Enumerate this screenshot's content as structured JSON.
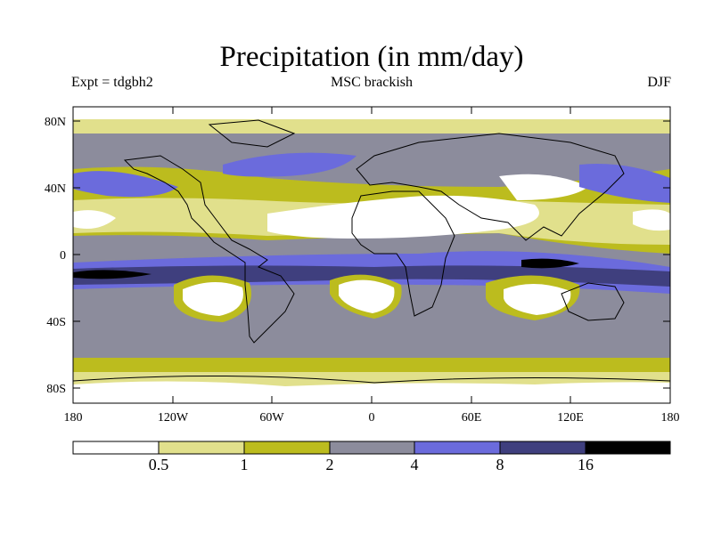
{
  "title": "Precipitation (in mm/day)",
  "subtitle_left": "Expt = tdgbh2",
  "subtitle_center": "MSC brackish",
  "subtitle_right": "DJF",
  "lat_ticks": [
    "80N",
    "40N",
    "0",
    "40S",
    "80S"
  ],
  "lon_ticks": [
    "180",
    "120W",
    "60W",
    "0",
    "60E",
    "120E",
    "180"
  ],
  "colorbar": {
    "colors": [
      "#ffffff",
      "#e1e08c",
      "#bcbc1e",
      "#8c8c9c",
      "#6b6bdc",
      "#3f3f7e",
      "#000000"
    ],
    "labels": [
      "0.5",
      "1",
      "2",
      "4",
      "8",
      "16"
    ]
  },
  "colors": {
    "white": "#ffffff",
    "light_yellow": "#e1e08c",
    "olive": "#bcbc1e",
    "gray": "#8c8c9c",
    "blue": "#6b6bdc",
    "dark_blue": "#3f3f7e",
    "black": "#000000"
  }
}
